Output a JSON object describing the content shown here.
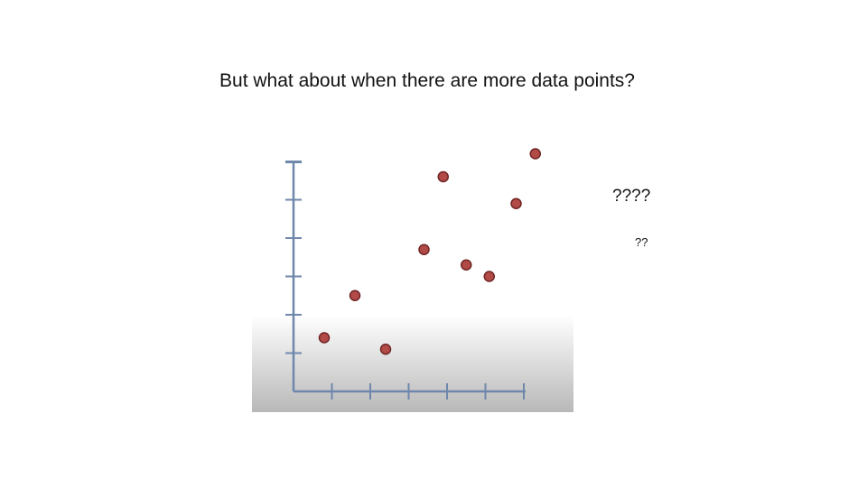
{
  "slide": {
    "title": "But what about when there are more data points?",
    "question_large": "????",
    "question_small": "??"
  },
  "chart_data": {
    "type": "scatter",
    "title": "",
    "xlabel": "",
    "ylabel": "",
    "xlim": [
      0,
      6.5
    ],
    "ylim": [
      0,
      6.5
    ],
    "x_ticks": [
      1,
      2,
      3,
      4,
      5,
      6
    ],
    "y_ticks": [
      1,
      2,
      3,
      4,
      5,
      6
    ],
    "grid": false,
    "series": [
      {
        "points": [
          {
            "x": 0.8,
            "y": 1.4
          },
          {
            "x": 1.6,
            "y": 2.5
          },
          {
            "x": 2.4,
            "y": 1.1
          },
          {
            "x": 3.4,
            "y": 3.7
          },
          {
            "x": 3.9,
            "y": 5.6
          },
          {
            "x": 4.5,
            "y": 3.3
          },
          {
            "x": 5.1,
            "y": 3.0
          },
          {
            "x": 5.8,
            "y": 4.9
          },
          {
            "x": 6.3,
            "y": 6.2
          }
        ]
      }
    ],
    "colors": {
      "point_fill": "#b24a48",
      "point_stroke": "#6e2422",
      "axis": "#6f87ab",
      "panel_top": "#ffffff",
      "panel_bottom": "#b8b8b8"
    }
  }
}
